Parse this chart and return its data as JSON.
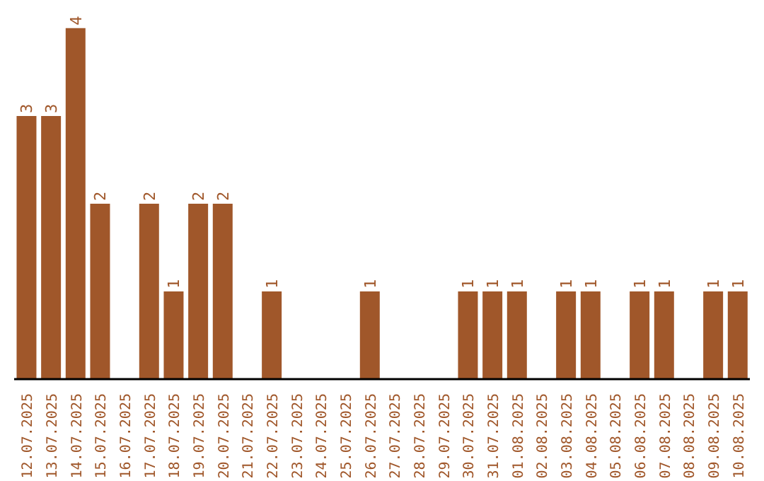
{
  "chart_data": {
    "type": "bar",
    "categories": [
      "12.07.2025",
      "13.07.2025",
      "14.07.2025",
      "15.07.2025",
      "16.07.2025",
      "17.07.2025",
      "18.07.2025",
      "19.07.2025",
      "20.07.2025",
      "21.07.2025",
      "22.07.2025",
      "23.07.2025",
      "24.07.2025",
      "25.07.2025",
      "26.07.2025",
      "27.07.2025",
      "28.07.2025",
      "29.07.2025",
      "30.07.2025",
      "31.07.2025",
      "01.08.2025",
      "02.08.2025",
      "03.08.2025",
      "04.08.2025",
      "05.08.2025",
      "06.08.2025",
      "07.08.2025",
      "08.08.2025",
      "09.08.2025",
      "10.08.2025"
    ],
    "values": [
      3,
      3,
      4,
      2,
      0,
      2,
      1,
      2,
      2,
      0,
      1,
      0,
      0,
      0,
      1,
      0,
      0,
      0,
      1,
      1,
      1,
      0,
      1,
      1,
      0,
      1,
      1,
      0,
      1,
      1
    ],
    "value_labels": [
      "3",
      "3",
      "4",
      "2",
      null,
      "2",
      "1",
      "2",
      "2",
      null,
      "1",
      null,
      null,
      null,
      "1",
      null,
      null,
      null,
      "1",
      "1",
      "1",
      null,
      "1",
      "1",
      null,
      "1",
      "1",
      null,
      "1",
      "1"
    ],
    "color": "#a0572a",
    "tick_labels": "x",
    "grid": false,
    "legend": false
  }
}
